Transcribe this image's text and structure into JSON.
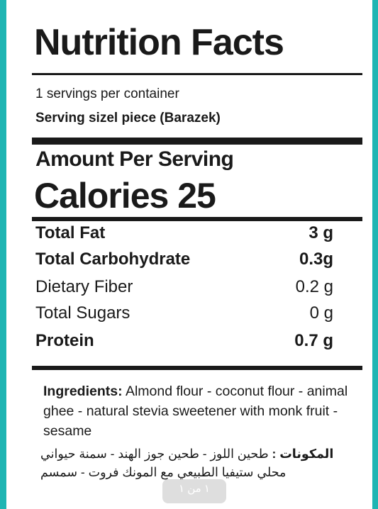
{
  "label": {
    "title": "Nutrition Facts",
    "servings_per_container": "1 servings per container",
    "serving_size": "Serving sizel piece (Barazek)",
    "amount_per_serving": "Amount Per Serving",
    "calories": "Calories 25",
    "nutrients": [
      {
        "name": "Total Fat",
        "amount": "3 g",
        "bold": true
      },
      {
        "name": "Total Carbohydrate",
        "amount": "0.3g",
        "bold": true
      },
      {
        "name": "Dietary Fiber",
        "amount": "0.2 g",
        "bold": false
      },
      {
        "name": "Total Sugars",
        "amount": "0 g",
        "bold": false
      },
      {
        "name": "Protein",
        "amount": "0.7 g",
        "bold": true
      }
    ],
    "ingredients_label": "Ingredients:",
    "ingredients_text": "Almond flour - coconut flour - animal ghee - natural stevia sweetener with monk fruit - sesame",
    "arabic_label": "المكونات :",
    "arabic_text": "طحين اللوز - طحين جوز الهند - سمنة حيواني محلي ستيفيا الطبيعي مع المونك فروت - سمسم"
  },
  "page_indicator": "١ من ١",
  "colors": {
    "border_accent": "#1fb5b3",
    "text": "#1a1a1a"
  }
}
